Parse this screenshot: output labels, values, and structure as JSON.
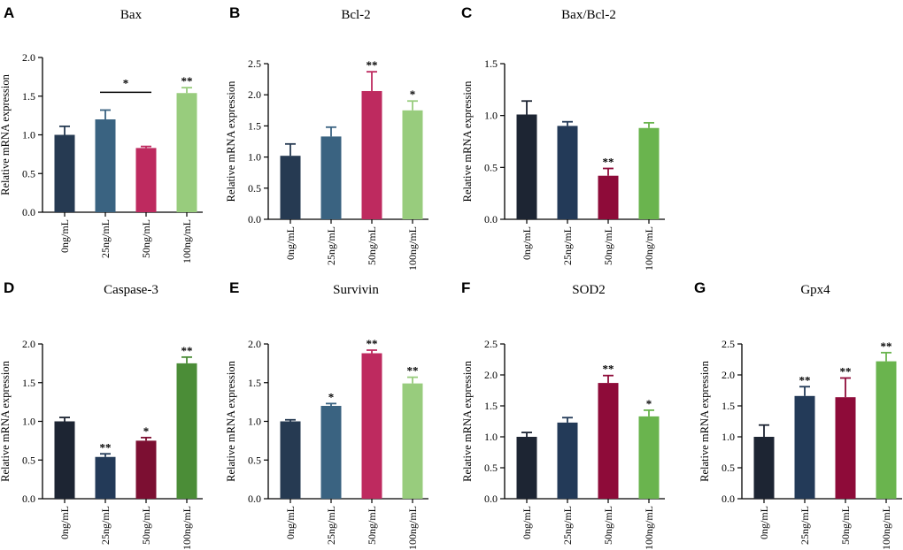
{
  "chart_data": [
    {
      "letter": "A",
      "type": "bar",
      "title": "Bax",
      "ylabel": "Relative mRNA expression",
      "categories": [
        "0ng/mL",
        "25ng/mL",
        "50ng/mL",
        "100ng/mL"
      ],
      "values": [
        1.0,
        1.2,
        0.83,
        1.54
      ],
      "errors": [
        0.11,
        0.12,
        0.02,
        0.07
      ],
      "significance": [
        "",
        "",
        "",
        "**"
      ],
      "bracket": {
        "from": 1,
        "to": 2,
        "y": 1.55,
        "label": "*"
      },
      "colors": [
        "#263A52",
        "#3A6381",
        "#BE2A5F",
        "#98CC7D"
      ],
      "ylim": [
        0,
        2.0
      ],
      "yticks": [
        "0.0",
        "0.5",
        "1.0",
        "1.5",
        "2.0"
      ]
    },
    {
      "letter": "B",
      "type": "bar",
      "title": "Bcl-2",
      "ylabel": "Relative mRNA expression",
      "categories": [
        "0ng/mL",
        "25ng/mL",
        "50ng/mL",
        "100ng/mL"
      ],
      "values": [
        1.02,
        1.33,
        2.06,
        1.75
      ],
      "errors": [
        0.19,
        0.15,
        0.31,
        0.15
      ],
      "significance": [
        "",
        "",
        "**",
        "*"
      ],
      "colors": [
        "#263A52",
        "#3A6381",
        "#BE2A5F",
        "#98CC7D"
      ],
      "ylim": [
        0,
        2.5
      ],
      "yticks": [
        "0.0",
        "0.5",
        "1.0",
        "1.5",
        "2.0",
        "2.5"
      ]
    },
    {
      "letter": "C",
      "type": "bar",
      "title": "Bax/Bcl-2",
      "ylabel": "Relative mRNA expression",
      "categories": [
        "0ng/mL",
        "25ng/mL",
        "50ng/mL",
        "100ng/mL"
      ],
      "values": [
        1.01,
        0.9,
        0.42,
        0.88
      ],
      "errors": [
        0.13,
        0.04,
        0.07,
        0.05
      ],
      "significance": [
        "",
        "",
        "**",
        ""
      ],
      "colors": [
        "#1D2533",
        "#233A58",
        "#8E0B39",
        "#6AB44E"
      ],
      "ylim": [
        0,
        1.5
      ],
      "yticks": [
        "0.0",
        "0.5",
        "1.0",
        "1.5"
      ]
    },
    {
      "letter": "D",
      "type": "bar",
      "title": "Caspase-3",
      "ylabel": "Relative mRNA expression",
      "categories": [
        "0ng/mL",
        "25ng/mL",
        "50ng/mL",
        "100ng/mL"
      ],
      "values": [
        1.0,
        0.54,
        0.75,
        1.75
      ],
      "errors": [
        0.05,
        0.04,
        0.04,
        0.08
      ],
      "significance": [
        "",
        "**",
        "*",
        "**"
      ],
      "colors": [
        "#1D2533",
        "#233A58",
        "#7C0F32",
        "#4B8D37"
      ],
      "ylim": [
        0,
        2.0
      ],
      "yticks": [
        "0.0",
        "0.5",
        "1.0",
        "1.5",
        "2.0"
      ]
    },
    {
      "letter": "E",
      "type": "bar",
      "title": "Survivin",
      "ylabel": "Relative mRNA expression",
      "categories": [
        "0ng/mL",
        "25ng/mL",
        "50ng/mL",
        "100ng/mL"
      ],
      "values": [
        1.0,
        1.2,
        1.88,
        1.49
      ],
      "errors": [
        0.02,
        0.03,
        0.04,
        0.08
      ],
      "significance": [
        "",
        "*",
        "**",
        "**"
      ],
      "colors": [
        "#263A52",
        "#3A6381",
        "#BE2A5F",
        "#98CC7D"
      ],
      "ylim": [
        0,
        2.0
      ],
      "yticks": [
        "0.0",
        "0.5",
        "1.0",
        "1.5",
        "2.0"
      ]
    },
    {
      "letter": "F",
      "type": "bar",
      "title": "SOD2",
      "ylabel": "Relative mRNA expression",
      "categories": [
        "0ng/mL",
        "25ng/mL",
        "50ng/mL",
        "100ng/mL"
      ],
      "values": [
        1.0,
        1.23,
        1.87,
        1.33
      ],
      "errors": [
        0.07,
        0.08,
        0.12,
        0.1
      ],
      "significance": [
        "",
        "",
        "**",
        "*"
      ],
      "colors": [
        "#1D2533",
        "#233A58",
        "#8E0B39",
        "#6AB44E"
      ],
      "ylim": [
        0,
        2.5
      ],
      "yticks": [
        "0.0",
        "0.5",
        "1.0",
        "1.5",
        "2.0",
        "2.5"
      ]
    },
    {
      "letter": "G",
      "type": "bar",
      "title": "Gpx4",
      "ylabel": "Relative mRNA expression",
      "categories": [
        "0ng/mL",
        "25ng/mL",
        "50ng/mL",
        "100ng/mL"
      ],
      "values": [
        1.0,
        1.66,
        1.64,
        2.22
      ],
      "errors": [
        0.19,
        0.15,
        0.31,
        0.14
      ],
      "significance": [
        "",
        "**",
        "**",
        "**"
      ],
      "colors": [
        "#1D2533",
        "#233A58",
        "#8E0B39",
        "#6AB44E"
      ],
      "ylim": [
        0,
        2.5
      ],
      "yticks": [
        "0.0",
        "0.5",
        "1.0",
        "1.5",
        "2.0",
        "2.5"
      ]
    }
  ]
}
